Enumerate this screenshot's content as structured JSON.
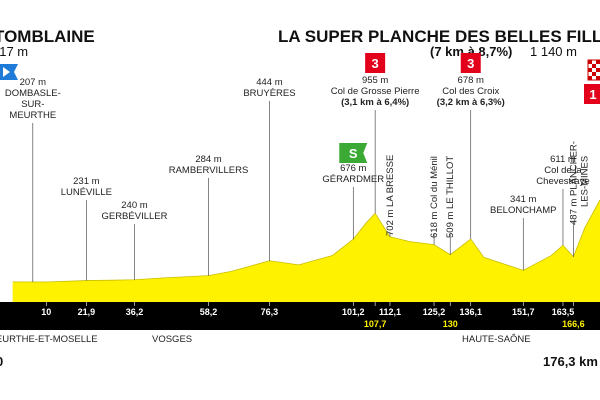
{
  "chart_data": {
    "type": "area",
    "start": {
      "name": "TOMBLAINE",
      "altitude": "217 m"
    },
    "finish": {
      "name": "LA SUPER PLANCHE DES BELLES FILLES",
      "climb": "(7 km à 8,7%)",
      "altitude": "1 140 m",
      "category": "1"
    },
    "x": [
      0,
      10,
      21.9,
      30,
      36.2,
      45,
      58.2,
      65,
      76.3,
      85,
      95,
      101.2,
      105,
      107.7,
      112.1,
      118,
      125.2,
      130,
      136.1,
      140,
      151.7,
      160,
      163.5,
      166.6,
      170,
      174.5
    ],
    "values": [
      217,
      215,
      231,
      235,
      240,
      260,
      284,
      330,
      444,
      400,
      500,
      676,
      850,
      955,
      702,
      650,
      618,
      509,
      678,
      480,
      341,
      500,
      611,
      487,
      800,
      1100
    ],
    "color": "#fff200",
    "xlim": [
      -3.75,
      174.5
    ],
    "ylim": [
      0,
      1400
    ],
    "xticks": [
      10,
      {
        "value": 21.9,
        "label": "21,9"
      },
      {
        "value": 36.2,
        "label": "36,2"
      },
      {
        "value": 58.2,
        "label": "58,2"
      },
      {
        "value": 76.3,
        "label": "76,3"
      },
      {
        "value": 101.2,
        "label": "101,2"
      },
      {
        "value": 107.7,
        "label": "107,7"
      },
      {
        "value": 112.1,
        "label": "112,1"
      },
      {
        "value": 125.2,
        "label": "125,2"
      },
      130,
      {
        "value": 136.1,
        "label": "136,1"
      },
      {
        "value": 151.7,
        "label": "151,7"
      },
      {
        "value": 163.5,
        "label": "163,5"
      },
      {
        "value": 166.6,
        "label": "166,6"
      }
    ],
    "annotations": [
      {
        "km": 6,
        "lines": [
          "207 m",
          "DOMBASLE-",
          "SUR-",
          "MEURTHE"
        ]
      },
      {
        "km": 21.9,
        "lines": [
          "231 m",
          "LUNÉVILLE"
        ]
      },
      {
        "km": 36.2,
        "lines": [
          "240 m",
          "GERBÉVILLER"
        ]
      },
      {
        "km": 58.2,
        "lines": [
          "284 m",
          "RAMBERVILLERS"
        ]
      },
      {
        "km": 76.3,
        "lines": [
          "444 m",
          "BRUYÈRES"
        ]
      },
      {
        "km": 101.2,
        "lines": [
          "676 m",
          "GÉRARDMER"
        ],
        "sprint": "S"
      },
      {
        "km": 107.7,
        "lines": [
          "955 m",
          "Col de Grosse Pierre",
          "(3,1 km à 6,4%)"
        ],
        "category": "3"
      },
      {
        "km": 112.1,
        "lines": [
          "702 m LA BRESSE"
        ],
        "vertical": true
      },
      {
        "km": 125.2,
        "lines": [
          "618 m Col du Ménil"
        ],
        "vertical": true
      },
      {
        "km": 130,
        "lines": [
          "509 m LE THILLOT"
        ],
        "vertical": true
      },
      {
        "km": 136.1,
        "lines": [
          "678 m",
          "Col des Croix",
          "(3,2 km à 6,3%)"
        ],
        "category": "3"
      },
      {
        "km": 151.7,
        "lines": [
          "341 m",
          "BELONCHAMP"
        ]
      },
      {
        "km": 163.5,
        "lines": [
          "611 m",
          "Col de la",
          "Chevestraye"
        ]
      },
      {
        "km": 166.6,
        "lines": [
          "487 m PLANCHER-",
          "LES-MINES"
        ],
        "vertical": true
      }
    ],
    "regions": [
      "MEURTHE-ET-MOSELLE",
      "VOSGES",
      "HAUTE-SAÔNE"
    ],
    "distance_start": 0,
    "distance_end": "176,3 km"
  }
}
